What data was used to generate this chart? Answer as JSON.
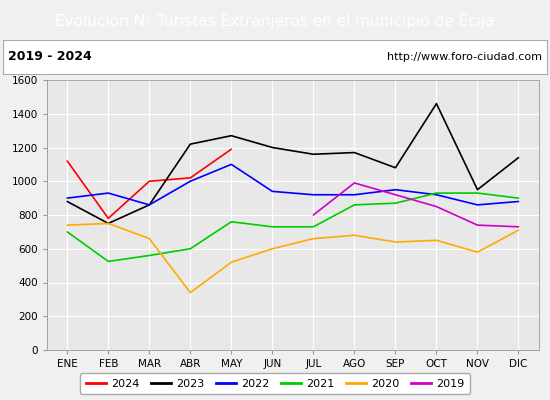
{
  "title": "Evolucion Nº Turistas Extranjeros en el municipio de Écija",
  "subtitle_left": "2019 - 2024",
  "subtitle_right": "http://www.foro-ciudad.com",
  "months": [
    "ENE",
    "FEB",
    "MAR",
    "ABR",
    "MAY",
    "JUN",
    "JUL",
    "AGO",
    "SEP",
    "OCT",
    "NOV",
    "DIC"
  ],
  "series": {
    "2024": [
      1120,
      780,
      1000,
      1020,
      1190,
      null,
      null,
      null,
      null,
      null,
      null,
      null
    ],
    "2023": [
      880,
      750,
      860,
      1220,
      1270,
      1200,
      1160,
      1170,
      1080,
      1460,
      950,
      1140
    ],
    "2022": [
      900,
      930,
      860,
      1000,
      1100,
      940,
      920,
      920,
      950,
      920,
      860,
      880
    ],
    "2021": [
      700,
      525,
      560,
      600,
      760,
      730,
      730,
      860,
      870,
      930,
      930,
      900
    ],
    "2020": [
      740,
      750,
      660,
      340,
      520,
      600,
      660,
      680,
      640,
      650,
      580,
      710
    ],
    "2019": [
      null,
      null,
      null,
      null,
      null,
      null,
      800,
      990,
      null,
      850,
      740,
      730
    ]
  },
  "colors": {
    "2024": "#ff0000",
    "2023": "#000000",
    "2022": "#0000ff",
    "2021": "#00cc00",
    "2020": "#ffaa00",
    "2019": "#cc00cc"
  },
  "ylim": [
    0,
    1600
  ],
  "yticks": [
    0,
    200,
    400,
    600,
    800,
    1000,
    1200,
    1400,
    1600
  ],
  "background_plot": "#e8e8e8",
  "background_title": "#4080c0",
  "background_subtitle": "#f0f0f0",
  "background_fig": "#f0f0f0",
  "title_color": "#ffffff",
  "grid_color": "#ffffff",
  "title_fontsize": 11,
  "subtitle_fontsize": 8,
  "legend_fontsize": 8,
  "tick_fontsize": 7.5
}
